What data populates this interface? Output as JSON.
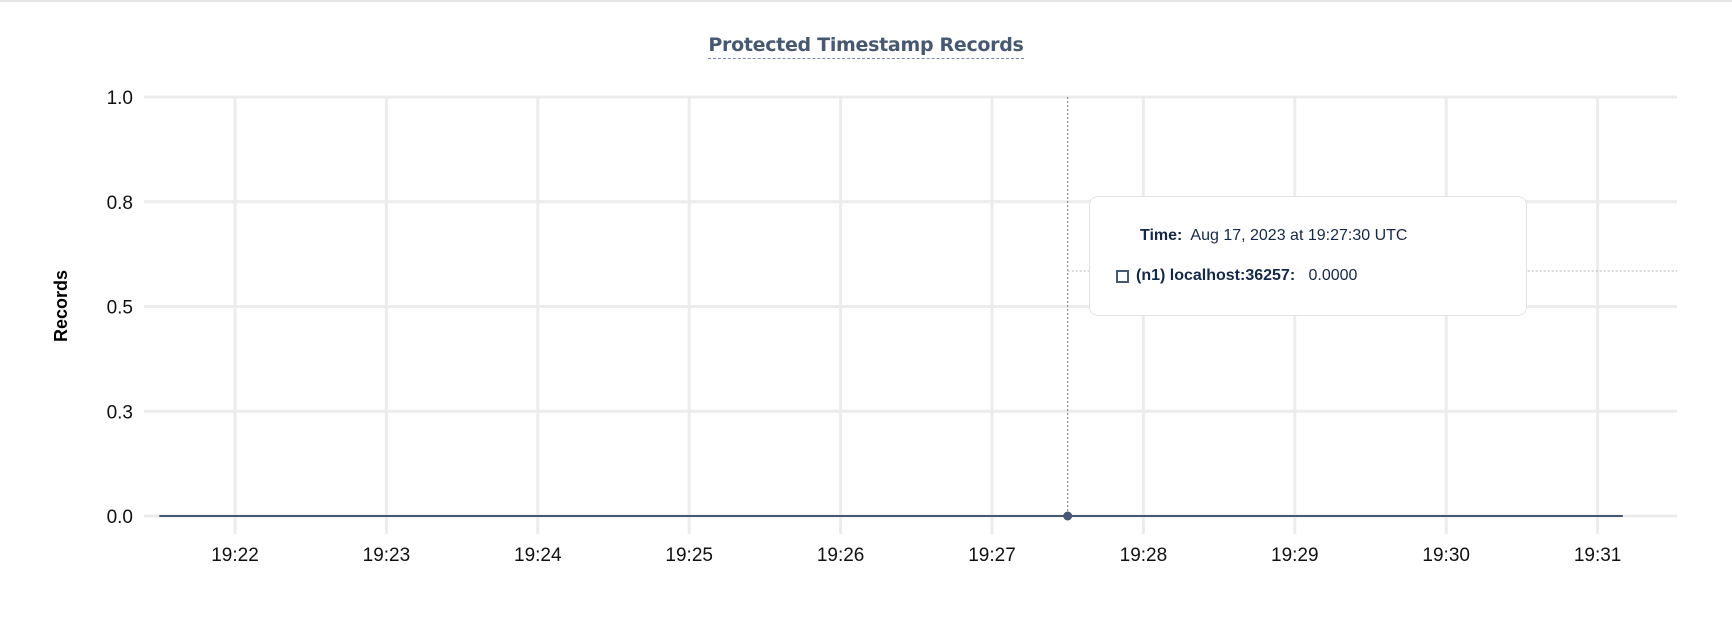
{
  "chart_data": {
    "type": "line",
    "title": "Protected Timestamp Records",
    "xlabel": "",
    "ylabel": "Records",
    "ylim": [
      0,
      1
    ],
    "yticks": [
      0,
      0.25,
      0.5,
      0.75,
      1.0
    ],
    "ytick_labels": [
      "0.0",
      "0.3",
      "0.5",
      "0.8",
      "1.0"
    ],
    "xlim": [
      "19:21:30",
      "19:31:15"
    ],
    "xtick_labels": [
      "19:22",
      "19:23",
      "19:24",
      "19:25",
      "19:26",
      "19:27",
      "19:28",
      "19:29",
      "19:30",
      "19:31"
    ],
    "grid": true,
    "series": [
      {
        "name": "(n1) localhost:36257",
        "color": "#475872",
        "x": [
          "19:21:30",
          "19:31:10"
        ],
        "y": [
          0,
          0
        ]
      }
    ],
    "hover": {
      "x": "19:27:30",
      "y": 0
    }
  },
  "tooltip": {
    "time_label": "Time:",
    "time_value": "Aug 17, 2023 at 19:27:30 UTC",
    "series_label": "(n1) localhost:36257:",
    "series_value": "0.0000"
  }
}
